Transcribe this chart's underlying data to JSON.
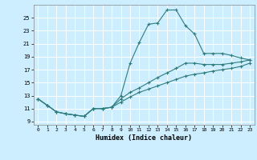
{
  "xlabel": "Humidex (Indice chaleur)",
  "bg_color": "#cceeff",
  "grid_color": "#ffffff",
  "line_color": "#2e7d7d",
  "xlim": [
    -0.5,
    23.5
  ],
  "ylim": [
    8.5,
    27.0
  ],
  "yticks": [
    9,
    11,
    13,
    15,
    17,
    19,
    21,
    23,
    25
  ],
  "xticks": [
    0,
    1,
    2,
    3,
    4,
    5,
    6,
    7,
    8,
    9,
    10,
    11,
    12,
    13,
    14,
    15,
    16,
    17,
    18,
    19,
    20,
    21,
    22,
    23
  ],
  "line1_x": [
    0,
    1,
    2,
    3,
    4,
    5,
    6,
    7,
    8,
    9,
    10,
    11,
    12,
    13,
    14,
    15,
    16,
    17,
    18,
    19,
    20,
    21,
    22,
    23
  ],
  "line1_y": [
    12.5,
    11.5,
    10.5,
    10.2,
    10.0,
    9.8,
    11.0,
    11.0,
    11.2,
    13.0,
    18.0,
    21.2,
    24.0,
    24.2,
    26.2,
    26.2,
    23.8,
    22.5,
    19.5,
    19.5,
    19.5,
    19.2,
    18.8,
    18.5
  ],
  "line2_x": [
    0,
    1,
    2,
    3,
    4,
    5,
    6,
    7,
    8,
    9,
    10,
    11,
    12,
    13,
    14,
    15,
    16,
    17,
    18,
    19,
    20,
    21,
    22,
    23
  ],
  "line2_y": [
    12.5,
    11.5,
    10.5,
    10.2,
    10.0,
    9.8,
    11.0,
    11.0,
    11.2,
    12.5,
    13.5,
    14.2,
    15.0,
    15.8,
    16.5,
    17.2,
    18.0,
    18.0,
    17.8,
    17.8,
    17.8,
    18.0,
    18.2,
    18.5
  ],
  "line3_x": [
    0,
    1,
    2,
    3,
    4,
    5,
    6,
    7,
    8,
    9,
    10,
    11,
    12,
    13,
    14,
    15,
    16,
    17,
    18,
    19,
    20,
    21,
    22,
    23
  ],
  "line3_y": [
    12.5,
    11.5,
    10.5,
    10.2,
    10.0,
    9.8,
    11.0,
    11.0,
    11.2,
    12.0,
    12.8,
    13.5,
    14.0,
    14.5,
    15.0,
    15.5,
    16.0,
    16.3,
    16.5,
    16.8,
    17.0,
    17.2,
    17.5,
    18.0
  ]
}
